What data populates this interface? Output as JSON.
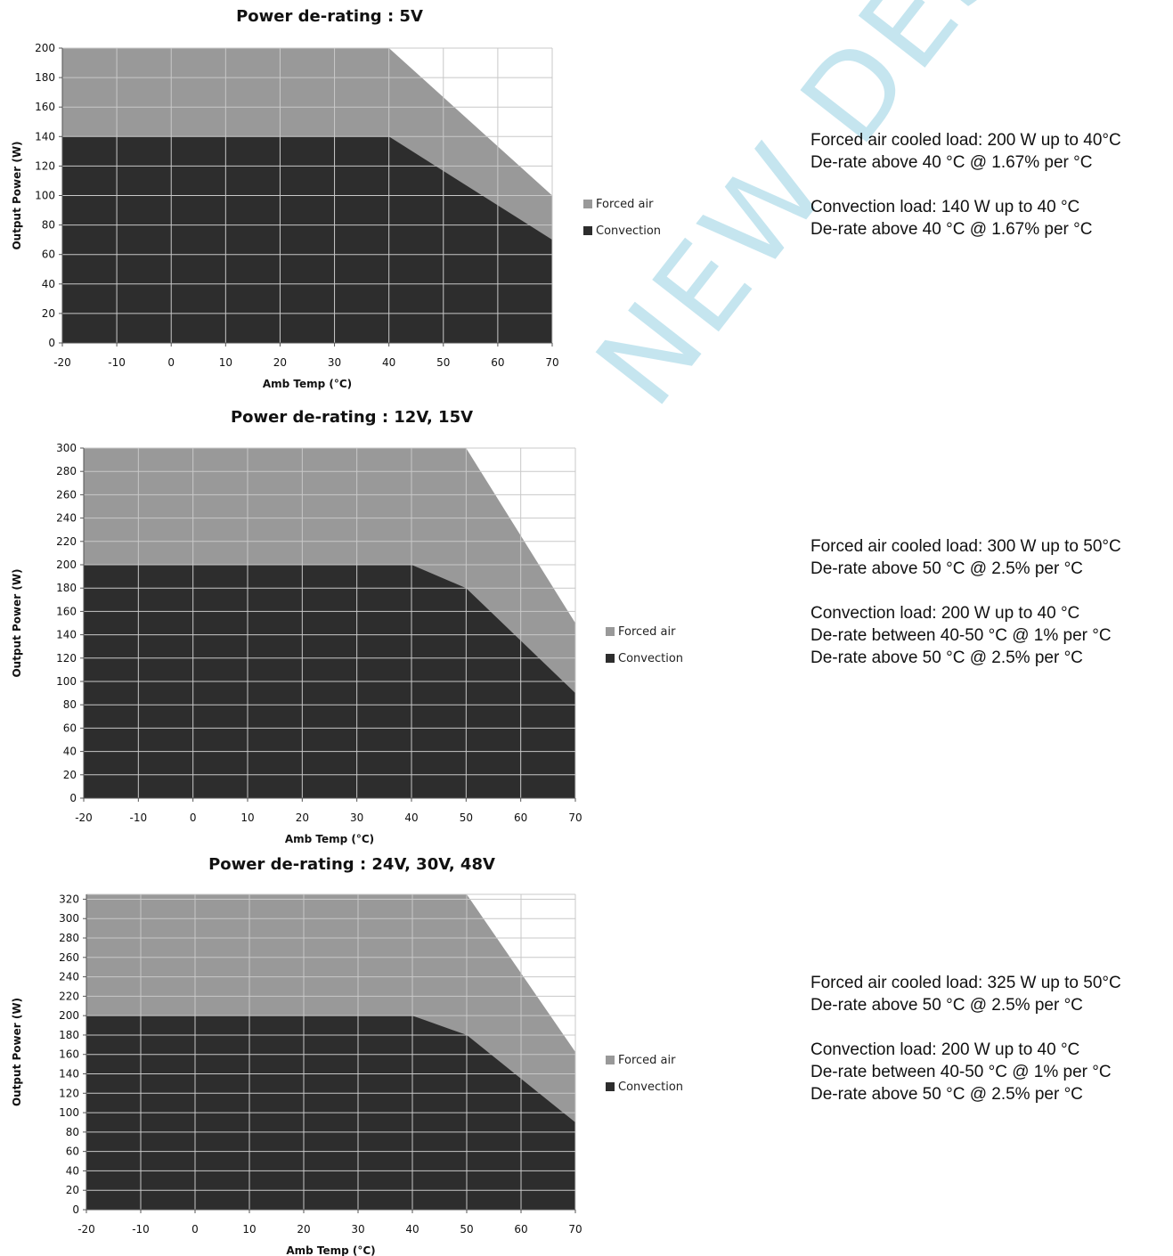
{
  "watermark": "NEW DESIGN",
  "colors": {
    "forced_air": "#999999",
    "convection": "#2d2d2d",
    "grid": "#c8c8c8",
    "watermark": "#bfe3ee"
  },
  "chart_data": [
    {
      "type": "area",
      "title": "Power de-rating : 5V",
      "xlabel": "Amb Temp (°C)",
      "ylabel": "Output Power (W)",
      "xlim": [
        -20,
        70
      ],
      "ylim": [
        0,
        200
      ],
      "xticks": [
        -20,
        -10,
        0,
        10,
        20,
        30,
        40,
        50,
        60,
        70
      ],
      "yticks": [
        0,
        20,
        40,
        60,
        80,
        100,
        120,
        140,
        160,
        180,
        200
      ],
      "grid": true,
      "legend": "right",
      "series": [
        {
          "name": "Forced air",
          "x": [
            -20,
            40,
            70
          ],
          "y": [
            200,
            200,
            100
          ]
        },
        {
          "name": "Convection",
          "x": [
            -20,
            40,
            70
          ],
          "y": [
            140,
            140,
            70
          ]
        }
      ]
    },
    {
      "type": "area",
      "title": "Power de-rating : 12V, 15V",
      "xlabel": "Amb Temp (°C)",
      "ylabel": "Output Power (W)",
      "xlim": [
        -20,
        70
      ],
      "ylim": [
        0,
        300
      ],
      "xticks": [
        -20,
        -10,
        0,
        10,
        20,
        30,
        40,
        50,
        60,
        70
      ],
      "yticks": [
        0,
        20,
        40,
        60,
        80,
        100,
        120,
        140,
        160,
        180,
        200,
        220,
        240,
        260,
        280,
        300
      ],
      "grid": true,
      "legend": "right",
      "series": [
        {
          "name": "Forced air",
          "x": [
            -20,
            50,
            70
          ],
          "y": [
            300,
            300,
            150
          ]
        },
        {
          "name": "Convection",
          "x": [
            -20,
            40,
            50,
            70
          ],
          "y": [
            200,
            200,
            180,
            90
          ]
        }
      ]
    },
    {
      "type": "area",
      "title": "Power de-rating : 24V, 30V, 48V",
      "xlabel": "Amb Temp (°C)",
      "ylabel": "Output Power (W)",
      "xlim": [
        -20,
        70
      ],
      "ylim": [
        0,
        325
      ],
      "xticks": [
        -20,
        -10,
        0,
        10,
        20,
        30,
        40,
        50,
        60,
        70
      ],
      "yticks": [
        0,
        20,
        40,
        60,
        80,
        100,
        120,
        140,
        160,
        180,
        200,
        220,
        240,
        260,
        280,
        300,
        320
      ],
      "grid": true,
      "legend": "right",
      "series": [
        {
          "name": "Forced air",
          "x": [
            -20,
            50,
            70
          ],
          "y": [
            325,
            325,
            162.5
          ]
        },
        {
          "name": "Convection",
          "x": [
            -20,
            40,
            50,
            70
          ],
          "y": [
            200,
            200,
            180,
            90
          ]
        }
      ]
    }
  ],
  "notes": [
    {
      "paragraphs": [
        [
          "Forced air cooled load: 200 W up to 40°C",
          "De-rate above 40 °C @ 1.67% per °C"
        ],
        [
          "Convection load: 140 W up to 40 °C",
          "De-rate above 40 °C @ 1.67% per °C"
        ]
      ]
    },
    {
      "paragraphs": [
        [
          "Forced air cooled load: 300 W up to 50°C",
          "De-rate above 50 °C @ 2.5% per °C"
        ],
        [
          "Convection load: 200 W up to 40 °C",
          "De-rate between 40-50 °C @ 1% per °C",
          "De-rate above 50 °C @ 2.5% per °C"
        ]
      ]
    },
    {
      "paragraphs": [
        [
          "Forced air cooled load: 325 W up to 50°C",
          "De-rate above 50 °C @ 2.5% per °C"
        ],
        [
          "Convection load: 200 W up to 40 °C",
          "De-rate between 40-50 °C @ 1% per °C",
          "De-rate above 50 °C @ 2.5% per °C"
        ]
      ]
    }
  ]
}
